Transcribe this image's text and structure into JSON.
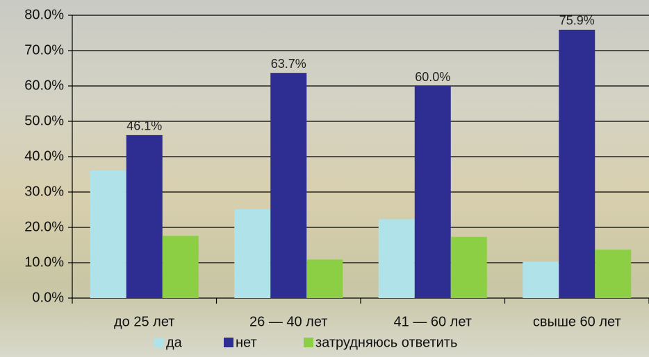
{
  "chart_data": {
    "type": "bar",
    "categories": [
      "до 25 лет",
      "26 — 40 лет",
      "41 — 60 лет",
      "свыше 60 лет"
    ],
    "series": [
      {
        "name": "да",
        "color": "#b0e2ea",
        "values": [
          36.1,
          25.1,
          22.3,
          10.3
        ]
      },
      {
        "name": "нет",
        "color": "#2e2e92",
        "values": [
          46.1,
          63.7,
          60.0,
          75.9
        ],
        "value_labels": [
          "46.1%",
          "63.7%",
          "60.0%",
          "75.9%"
        ]
      },
      {
        "name": "затрудняюсь ответить",
        "color": "#8ccf45",
        "values": [
          17.6,
          10.9,
          17.3,
          13.7
        ]
      }
    ],
    "ylim": [
      0,
      80
    ],
    "yticks": [
      {
        "value": 0,
        "label": "0.0%"
      },
      {
        "value": 10,
        "label": "10.0%"
      },
      {
        "value": 20,
        "label": "20.0%"
      },
      {
        "value": 30,
        "label": "30.0%"
      },
      {
        "value": 40,
        "label": "40.0%"
      },
      {
        "value": 50,
        "label": "50.0%"
      },
      {
        "value": 60,
        "label": "60.0%"
      },
      {
        "value": 70,
        "label": "70.0%"
      },
      {
        "value": 80,
        "label": "80.0%"
      }
    ],
    "grid": true
  }
}
